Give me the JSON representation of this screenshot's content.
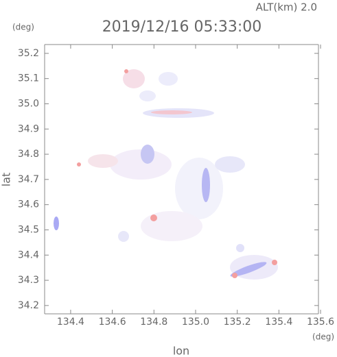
{
  "chart_data": {
    "type": "radar-map",
    "title": "2019/12/16 05:33:00",
    "altitude_label": "ALT(km)  2.0",
    "y_unit": "(deg)",
    "x_unit": "(deg)",
    "xlabel": "lon",
    "ylabel": "lat",
    "xlim": [
      134.275,
      135.59
    ],
    "ylim": [
      34.167,
      35.235
    ],
    "xticks": [
      134.4,
      134.6,
      134.8,
      {
        "value": 135,
        "label": "135.0"
      },
      135.2,
      135.4,
      135.6
    ],
    "yticks": [
      {
        "value": 34.2,
        "label": "34.2"
      },
      34.3,
      34.4,
      34.5,
      34.6,
      34.7,
      34.8,
      34.9,
      {
        "value": 35,
        "label": "35.0"
      },
      35.1,
      35.2
    ]
  }
}
